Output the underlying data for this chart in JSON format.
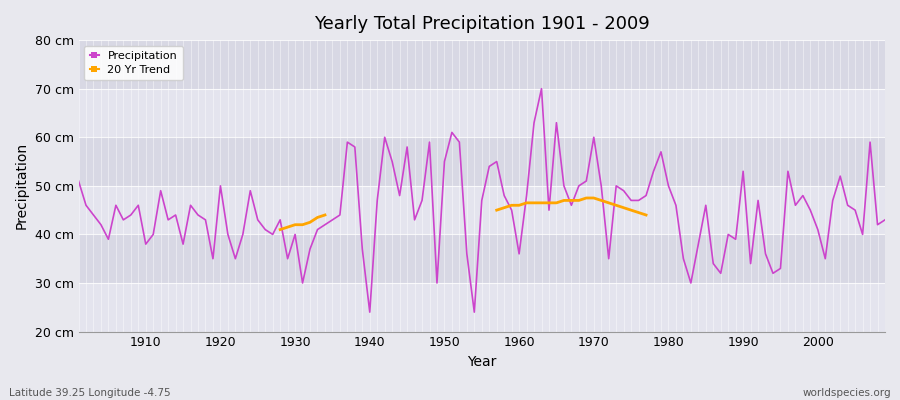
{
  "title": "Yearly Total Precipitation 1901 - 2009",
  "xlabel": "Year",
  "ylabel": "Precipitation",
  "subtitle": "Latitude 39.25 Longitude -4.75",
  "credit": "worldspecies.org",
  "ylim": [
    20,
    80
  ],
  "yticks": [
    20,
    30,
    40,
    50,
    60,
    70,
    80
  ],
  "ytick_labels": [
    "20 cm",
    "30 cm",
    "40 cm",
    "50 cm",
    "60 cm",
    "70 cm",
    "80 cm"
  ],
  "xlim": [
    1901,
    2009
  ],
  "xticks": [
    1910,
    1920,
    1930,
    1940,
    1950,
    1960,
    1970,
    1980,
    1990,
    2000
  ],
  "precip_color": "#CC44CC",
  "trend_color": "#FFA500",
  "fig_bg": "#E8E8EE",
  "plot_bg_light": "#E0E0EA",
  "plot_bg_dark": "#D0D0DC",
  "years": [
    1901,
    1902,
    1903,
    1904,
    1905,
    1906,
    1907,
    1908,
    1909,
    1910,
    1911,
    1912,
    1913,
    1914,
    1915,
    1916,
    1917,
    1918,
    1919,
    1920,
    1921,
    1922,
    1923,
    1924,
    1925,
    1926,
    1927,
    1928,
    1929,
    1930,
    1931,
    1932,
    1933,
    1934,
    1935,
    1936,
    1937,
    1938,
    1939,
    1940,
    1941,
    1942,
    1943,
    1944,
    1945,
    1946,
    1947,
    1948,
    1949,
    1950,
    1951,
    1952,
    1953,
    1954,
    1955,
    1956,
    1957,
    1958,
    1959,
    1960,
    1961,
    1962,
    1963,
    1964,
    1965,
    1966,
    1967,
    1968,
    1969,
    1970,
    1971,
    1972,
    1973,
    1974,
    1975,
    1976,
    1977,
    1978,
    1979,
    1980,
    1981,
    1982,
    1983,
    1984,
    1985,
    1986,
    1987,
    1988,
    1989,
    1990,
    1991,
    1992,
    1993,
    1994,
    1995,
    1996,
    1997,
    1998,
    1999,
    2000,
    2001,
    2002,
    2003,
    2004,
    2005,
    2006,
    2007,
    2008,
    2009
  ],
  "precip": [
    51,
    46,
    44,
    42,
    39,
    46,
    43,
    44,
    46,
    38,
    40,
    49,
    43,
    44,
    38,
    46,
    44,
    43,
    35,
    50,
    40,
    35,
    40,
    49,
    43,
    41,
    40,
    43,
    35,
    40,
    30,
    37,
    41,
    42,
    43,
    44,
    59,
    58,
    37,
    24,
    47,
    60,
    55,
    48,
    58,
    43,
    47,
    59,
    30,
    55,
    61,
    59,
    36,
    24,
    47,
    54,
    55,
    48,
    45,
    36,
    48,
    63,
    70,
    45,
    63,
    50,
    46,
    50,
    51,
    60,
    50,
    35,
    50,
    49,
    47,
    47,
    48,
    53,
    57,
    50,
    46,
    35,
    30,
    38,
    46,
    34,
    32,
    40,
    39,
    53,
    34,
    47,
    36,
    32,
    33,
    53,
    46,
    48,
    45,
    41,
    35,
    47,
    52,
    46,
    45,
    40,
    59,
    42,
    43
  ],
  "trend_seg1_years": [
    1928,
    1929,
    1930,
    1931,
    1932,
    1933,
    1934
  ],
  "trend_seg1_values": [
    41.0,
    41.5,
    42.0,
    42.0,
    42.5,
    43.5,
    44.0
  ],
  "trend_seg2_years": [
    1957,
    1958,
    1959,
    1960,
    1961,
    1962,
    1963,
    1964,
    1965,
    1966,
    1967,
    1968,
    1969,
    1970,
    1971,
    1972,
    1973,
    1974,
    1975,
    1976,
    1977
  ],
  "trend_seg2_values": [
    45.0,
    45.5,
    46.0,
    46.0,
    46.5,
    46.5,
    46.5,
    46.5,
    46.5,
    47.0,
    47.0,
    47.0,
    47.5,
    47.5,
    47.0,
    46.5,
    46.0,
    45.5,
    45.0,
    44.5,
    44.0
  ]
}
